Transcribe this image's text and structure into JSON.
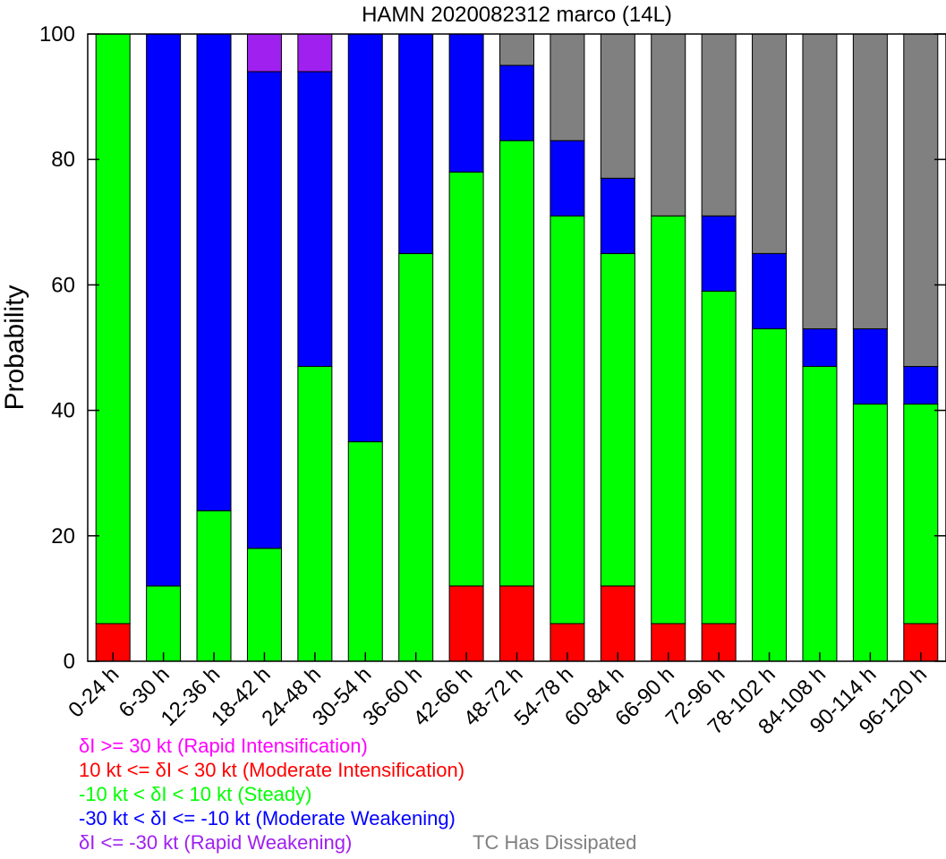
{
  "chart_data": {
    "type": "bar",
    "stacked": true,
    "title": "HAMN 2020082312 marco (14L)",
    "ylabel": "Probability",
    "xlabel": "",
    "ylim": [
      0,
      100
    ],
    "yticks": [
      "0",
      "20",
      "40",
      "60",
      "80",
      "100"
    ],
    "categories": [
      "0-24 h",
      "6-30 h",
      "12-36 h",
      "18-42 h",
      "24-48 h",
      "30-54 h",
      "36-60 h",
      "42-66 h",
      "48-72 h",
      "54-78 h",
      "60-84 h",
      "66-90 h",
      "72-96 h",
      "78-102 h",
      "84-108 h",
      "90-114 h",
      "96-120 h"
    ],
    "series": [
      {
        "name": "Rapid Intensification",
        "color": "#ff00ff",
        "values": [
          0,
          0,
          0,
          0,
          0,
          0,
          0,
          0,
          0,
          0,
          0,
          0,
          0,
          0,
          0,
          0,
          0
        ]
      },
      {
        "name": "Moderate Intensification",
        "color": "#ff0000",
        "values": [
          6,
          0,
          0,
          0,
          0,
          0,
          0,
          12,
          12,
          6,
          12,
          6,
          6,
          0,
          0,
          0,
          6
        ]
      },
      {
        "name": "Steady",
        "color": "#00ff00",
        "values": [
          94,
          12,
          24,
          18,
          47,
          35,
          65,
          66,
          71,
          65,
          53,
          65,
          53,
          53,
          47,
          41,
          35
        ]
      },
      {
        "name": "Moderate Weakening",
        "color": "#0000ff",
        "values": [
          0,
          88,
          76,
          76,
          47,
          65,
          35,
          22,
          12,
          12,
          12,
          0,
          12,
          12,
          6,
          12,
          6
        ]
      },
      {
        "name": "Rapid Weakening",
        "color": "#a020f0",
        "values": [
          0,
          0,
          0,
          6,
          6,
          0,
          0,
          0,
          0,
          0,
          0,
          0,
          0,
          0,
          0,
          0,
          0
        ]
      },
      {
        "name": "TC Has Dissipated",
        "color": "#808080",
        "values": [
          0,
          0,
          0,
          0,
          0,
          0,
          0,
          0,
          5,
          17,
          23,
          29,
          29,
          35,
          47,
          47,
          53
        ]
      }
    ]
  },
  "legend": {
    "ri": "δI >= 30 kt (Rapid Intensification)",
    "mi": "10 kt <= δI < 30 kt (Moderate Intensification)",
    "steady": "-10 kt < δI < 10 kt (Steady)",
    "mw": "-30 kt < δI <= -10 kt (Moderate Weakening)",
    "rw": "δI <= -30 kt (Rapid Weakening)",
    "dissipated": "TC Has Dissipated"
  },
  "colors": {
    "ri": "#ff00ff",
    "mi": "#ff0000",
    "steady": "#00ff00",
    "mw": "#0000ff",
    "rw": "#a020f0",
    "dissipated": "#808080"
  }
}
